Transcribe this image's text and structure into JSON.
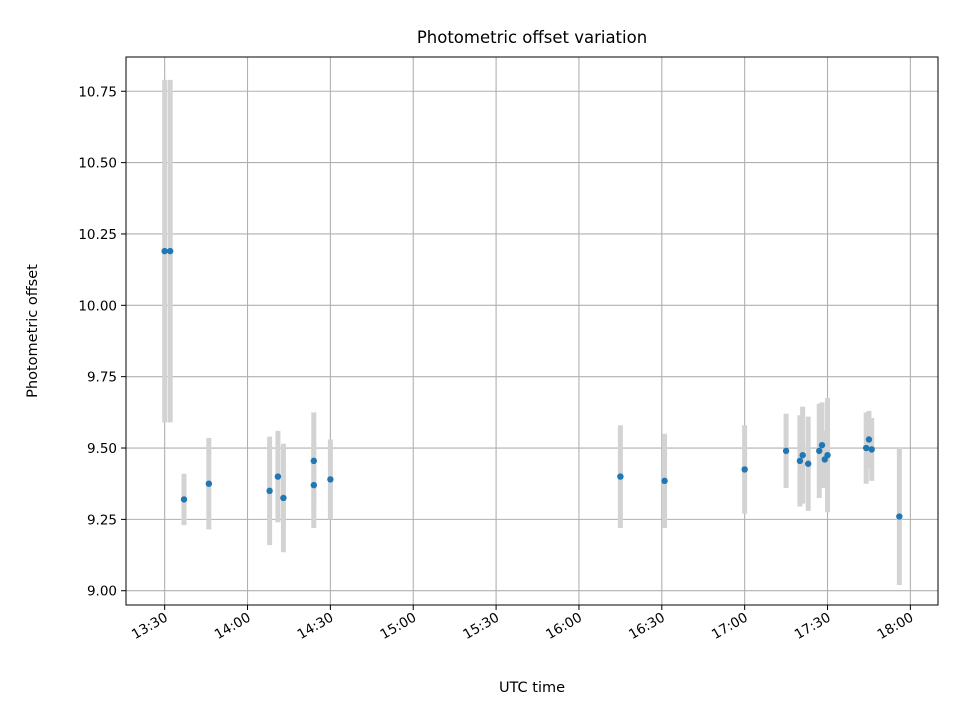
{
  "chart_data": {
    "type": "scatter",
    "title": "Photometric offset variation",
    "xlabel": "UTC time",
    "ylabel": "Photometric offset",
    "xlim": [
      "13:16",
      "18:10"
    ],
    "ylim": [
      8.95,
      10.87
    ],
    "xticks": [
      "13:30",
      "14:00",
      "14:30",
      "15:00",
      "15:30",
      "16:00",
      "16:30",
      "17:00",
      "17:30",
      "18:00"
    ],
    "yticks": [
      9.0,
      9.25,
      9.5,
      9.75,
      10.0,
      10.25,
      10.5,
      10.75
    ],
    "ytick_labels": [
      "9.00",
      "9.25",
      "9.50",
      "9.75",
      "10.00",
      "10.25",
      "10.50",
      "10.75"
    ],
    "grid": true,
    "colors": {
      "points": "#1f77b4",
      "errorbars": "#d3d3d3",
      "grid": "#b0b0b0"
    },
    "points": [
      {
        "x": "13:30",
        "y": 10.19,
        "err": 0.6
      },
      {
        "x": "13:32",
        "y": 10.19,
        "err": 0.6
      },
      {
        "x": "13:37",
        "y": 9.32,
        "err": 0.09
      },
      {
        "x": "13:46",
        "y": 9.375,
        "err": 0.16
      },
      {
        "x": "14:08",
        "y": 9.35,
        "err": 0.19
      },
      {
        "x": "14:11",
        "y": 9.4,
        "err": 0.16
      },
      {
        "x": "14:13",
        "y": 9.325,
        "err": 0.19
      },
      {
        "x": "14:24",
        "y": 9.455,
        "err": 0.17
      },
      {
        "x": "14:24",
        "y": 9.37,
        "err": 0.15
      },
      {
        "x": "14:30",
        "y": 9.39,
        "err": 0.14
      },
      {
        "x": "16:15",
        "y": 9.4,
        "err": 0.18
      },
      {
        "x": "16:31",
        "y": 9.385,
        "err": 0.165
      },
      {
        "x": "17:00",
        "y": 9.425,
        "err": 0.155
      },
      {
        "x": "17:15",
        "y": 9.49,
        "err": 0.13
      },
      {
        "x": "17:20",
        "y": 9.455,
        "err": 0.16
      },
      {
        "x": "17:21",
        "y": 9.475,
        "err": 0.17
      },
      {
        "x": "17:23",
        "y": 9.445,
        "err": 0.165
      },
      {
        "x": "17:27",
        "y": 9.49,
        "err": 0.165
      },
      {
        "x": "17:28",
        "y": 9.51,
        "err": 0.15
      },
      {
        "x": "17:29",
        "y": 9.46,
        "err": 0.1
      },
      {
        "x": "17:30",
        "y": 9.475,
        "err": 0.2
      },
      {
        "x": "17:44",
        "y": 9.5,
        "err": 0.125
      },
      {
        "x": "17:45",
        "y": 9.53,
        "err": 0.1
      },
      {
        "x": "17:46",
        "y": 9.495,
        "err": 0.11
      },
      {
        "x": "17:56",
        "y": 9.26,
        "err": 0.24
      }
    ]
  }
}
